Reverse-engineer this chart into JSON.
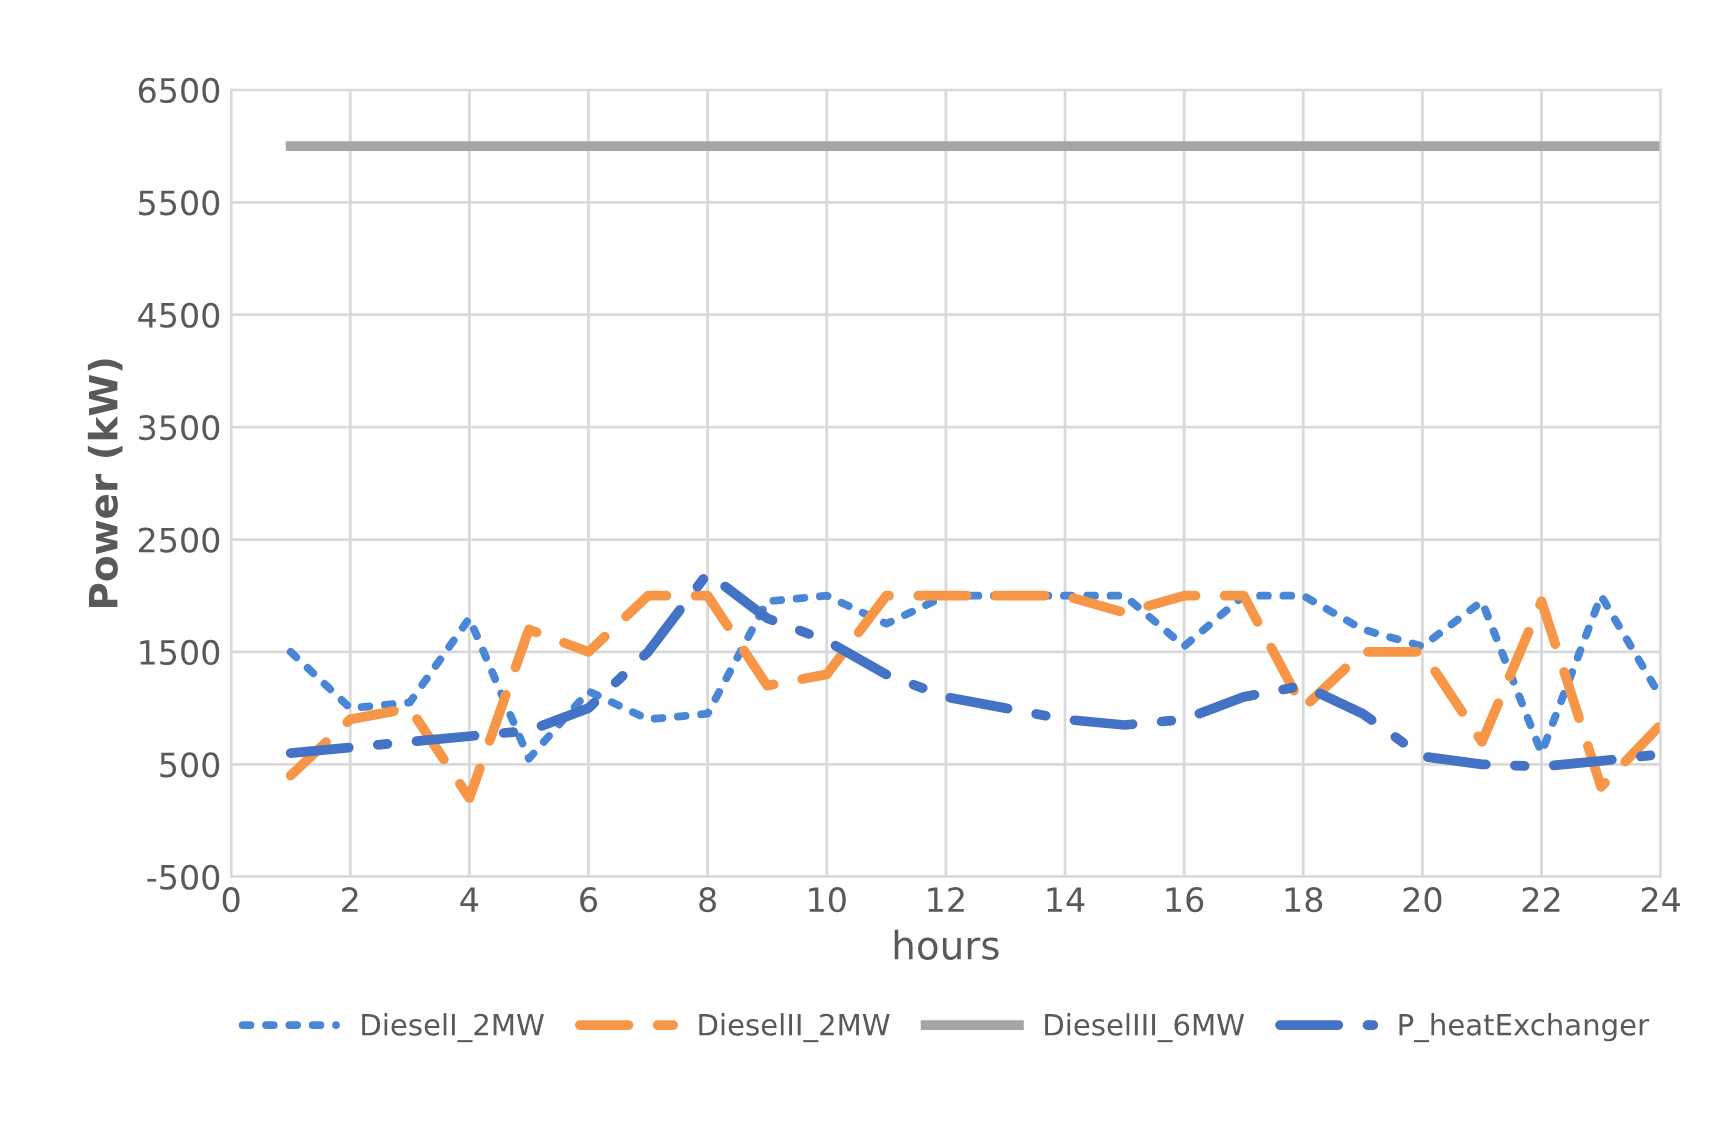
{
  "chart_data": {
    "type": "line",
    "xlabel": "hours",
    "ylabel": "Power (kW)",
    "x": [
      1,
      2,
      3,
      4,
      5,
      6,
      7,
      8,
      9,
      10,
      11,
      12,
      13,
      14,
      15,
      16,
      17,
      18,
      19,
      20,
      21,
      22,
      23,
      24
    ],
    "series": [
      {
        "name": "DieselI_2MW",
        "color": "#4a86d6",
        "line_style": "dotted",
        "values": [
          1500,
          1000,
          1050,
          1800,
          550,
          1150,
          900,
          950,
          1950,
          2000,
          1750,
          2000,
          2000,
          2000,
          2000,
          1550,
          2000,
          2000,
          1700,
          1550,
          1950,
          600,
          2000,
          1100
        ]
      },
      {
        "name": "DieselII_2MW",
        "color": "#f79646",
        "line_style": "dashed",
        "values": [
          400,
          900,
          1000,
          200,
          1700,
          1500,
          2000,
          2000,
          1200,
          1300,
          2000,
          2000,
          2000,
          2000,
          1850,
          2000,
          2000,
          1000,
          1500,
          1500,
          700,
          1950,
          300,
          850
        ]
      },
      {
        "name": "DieselIII_6MW",
        "color": "#a5a5a5",
        "line_style": "solid",
        "values": [
          6000,
          6000,
          6000,
          6000,
          6000,
          6000,
          6000,
          6000,
          6000,
          6000,
          6000,
          6000,
          6000,
          6000,
          6000,
          6000,
          6000,
          6000,
          6000,
          6000,
          6000,
          6000,
          6000,
          6000
        ]
      },
      {
        "name": "P_heatExchanger",
        "color": "#4472c4",
        "line_style": "dashdot",
        "values": [
          600,
          650,
          700,
          750,
          800,
          1000,
          1500,
          2200,
          1800,
          1600,
          1300,
          1100,
          1000,
          900,
          850,
          900,
          1100,
          1200,
          950,
          570,
          500,
          480,
          530,
          590
        ]
      }
    ],
    "xlim": [
      0,
      24
    ],
    "xticks": [
      0,
      2,
      4,
      6,
      8,
      10,
      12,
      14,
      16,
      18,
      20,
      22,
      24
    ],
    "ylim": [
      -500,
      6500
    ],
    "yticks": [
      -500,
      500,
      1500,
      2500,
      3500,
      4500,
      5500,
      6500
    ],
    "grid": true,
    "legend": "bottom"
  }
}
